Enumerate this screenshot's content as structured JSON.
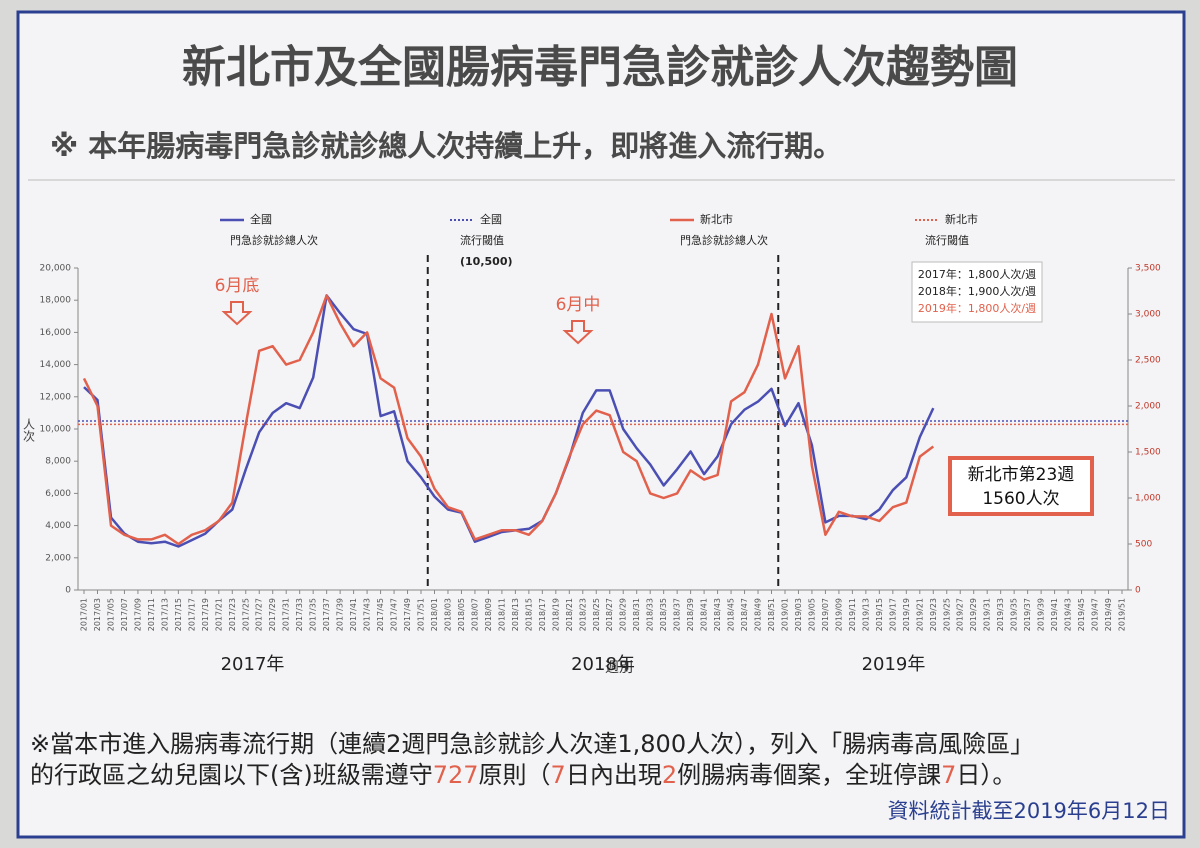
{
  "chart_data": {
    "type": "line",
    "title": "新北市及全國腸病毒門急診就診人次趨勢圖",
    "subtitle": "※ 本年腸病毒門急診就診總人次持續上升，即將進入流行期。",
    "y_label": "人次",
    "x_label": "週別",
    "years": [
      "2017年",
      "2018年",
      "2019年"
    ],
    "categories": [
      "2017/01",
      "2017/03",
      "2017/05",
      "2017/07",
      "2017/09",
      "2017/11",
      "2017/13",
      "2017/15",
      "2017/17",
      "2017/19",
      "2017/21",
      "2017/23",
      "2017/25",
      "2017/27",
      "2017/29",
      "2017/31",
      "2017/33",
      "2017/35",
      "2017/37",
      "2017/39",
      "2017/41",
      "2017/43",
      "2017/45",
      "2017/47",
      "2017/49",
      "2017/51",
      "2018/01",
      "2018/03",
      "2018/05",
      "2018/07",
      "2018/09",
      "2018/11",
      "2018/13",
      "2018/15",
      "2018/17",
      "2018/19",
      "2018/21",
      "2018/23",
      "2018/25",
      "2018/27",
      "2018/29",
      "2018/31",
      "2018/33",
      "2018/35",
      "2018/37",
      "2018/39",
      "2018/41",
      "2018/43",
      "2018/45",
      "2018/47",
      "2018/49",
      "2018/51",
      "2019/01",
      "2019/03",
      "2019/05",
      "2019/07",
      "2019/09",
      "2019/11",
      "2019/13",
      "2019/15",
      "2019/17",
      "2019/19",
      "2019/21",
      "2019/23",
      "2019/25",
      "2019/27",
      "2019/29",
      "2019/31",
      "2019/33",
      "2019/35",
      "2019/37",
      "2019/39",
      "2019/41",
      "2019/43",
      "2019/45",
      "2019/47",
      "2019/49",
      "2019/51"
    ],
    "series": [
      {
        "name": [
          "全國",
          "門急診就診總人次"
        ],
        "color": "#4b4fb3",
        "axis": "y",
        "values": [
          12600,
          11800,
          4500,
          3500,
          3000,
          2900,
          3000,
          2700,
          3100,
          3500,
          4300,
          5000,
          7500,
          9800,
          11000,
          11600,
          11300,
          13200,
          18300,
          17200,
          16200,
          15900,
          10800,
          11100,
          8000,
          7000,
          5800,
          5000,
          4800,
          3000,
          3300,
          3600,
          3700,
          3800,
          4300,
          6000,
          8200,
          11000,
          12400,
          12400,
          10000,
          8800,
          7800,
          6500,
          7500,
          8600,
          7200,
          8300,
          10300,
          11200,
          11700,
          12500,
          10200,
          11600,
          9000,
          4200,
          4600,
          4600,
          4400,
          5000,
          6200,
          7000,
          9500,
          11300,
          null,
          null,
          null,
          null,
          null,
          null,
          null,
          null,
          null,
          null,
          null,
          null,
          null,
          null
        ]
      },
      {
        "name": [
          "新北市",
          "門急診就診總人次"
        ],
        "color": "#e2614c",
        "axis": "y2",
        "values": [
          2300,
          2000,
          700,
          600,
          550,
          550,
          600,
          500,
          600,
          650,
          750,
          950,
          1800,
          2600,
          2650,
          2450,
          2500,
          2800,
          3200,
          2900,
          2650,
          2800,
          2300,
          2200,
          1650,
          1450,
          1100,
          900,
          850,
          550,
          600,
          650,
          650,
          600,
          750,
          1050,
          1450,
          1800,
          1950,
          1900,
          1500,
          1400,
          1050,
          1000,
          1050,
          1300,
          1200,
          1250,
          2050,
          2150,
          2450,
          3000,
          2300,
          2650,
          1350,
          600,
          850,
          800,
          800,
          750,
          900,
          950,
          1450,
          1560,
          null,
          null,
          null,
          null,
          null,
          null,
          null,
          null,
          null,
          null,
          null,
          null,
          null,
          null
        ]
      }
    ],
    "thresholds": [
      {
        "name": [
          "全國",
          "流行閾值",
          "(10,500)"
        ],
        "value": 10500,
        "axis": "y",
        "color": "#4b4fb3"
      },
      {
        "name": [
          "新北市",
          "流行閾值"
        ],
        "value": 1800,
        "axis": "y2",
        "color": "#e2614c"
      }
    ],
    "ylim": [
      0,
      20000
    ],
    "yticks": [
      0,
      {
        "value": 2000,
        "label": "2,000"
      },
      {
        "value": 4000,
        "label": "4,000"
      },
      {
        "value": 6000,
        "label": "6,000"
      },
      {
        "value": 8000,
        "label": "8,000"
      },
      {
        "value": 10000,
        "label": "10,000"
      },
      {
        "value": 12000,
        "label": "12,000"
      },
      {
        "value": 14000,
        "label": "14,000"
      },
      {
        "value": 16000,
        "label": "16,000"
      },
      {
        "value": 18000,
        "label": "18,000"
      },
      {
        "value": 20000,
        "label": "20,000"
      }
    ],
    "y2lim": [
      0,
      3500
    ],
    "y2ticks": [
      0,
      500,
      {
        "value": 1000,
        "label": "1,000"
      },
      {
        "value": 1500,
        "label": "1,500"
      },
      {
        "value": 2000,
        "label": "2,000"
      },
      {
        "value": 2500,
        "label": "2,500"
      },
      {
        "value": 3000,
        "label": "3,000"
      },
      {
        "value": 3500,
        "label": "3,500"
      }
    ],
    "annotations": [
      "6月底",
      "6月中"
    ],
    "threshold_box": [
      "2017年：1,800人次/週",
      "2018年：1,900人次/週",
      "2019年：1,800人次/週"
    ],
    "callout": [
      "新北市第23週",
      "1560人次"
    ]
  },
  "footnote": {
    "line1": "※當本市進入腸病毒流行期（連續2週門急診就診人次達1,800人次），列入「腸病毒高風險區」",
    "line2": [
      "的行政區之幼兒園以下(含)班級需遵守",
      "727",
      "原則（",
      "7",
      "日內出現",
      "2",
      "例腸病毒個案，全班停課",
      "7",
      "日）。"
    ],
    "date": "資料統計截至2019年6月12日"
  }
}
